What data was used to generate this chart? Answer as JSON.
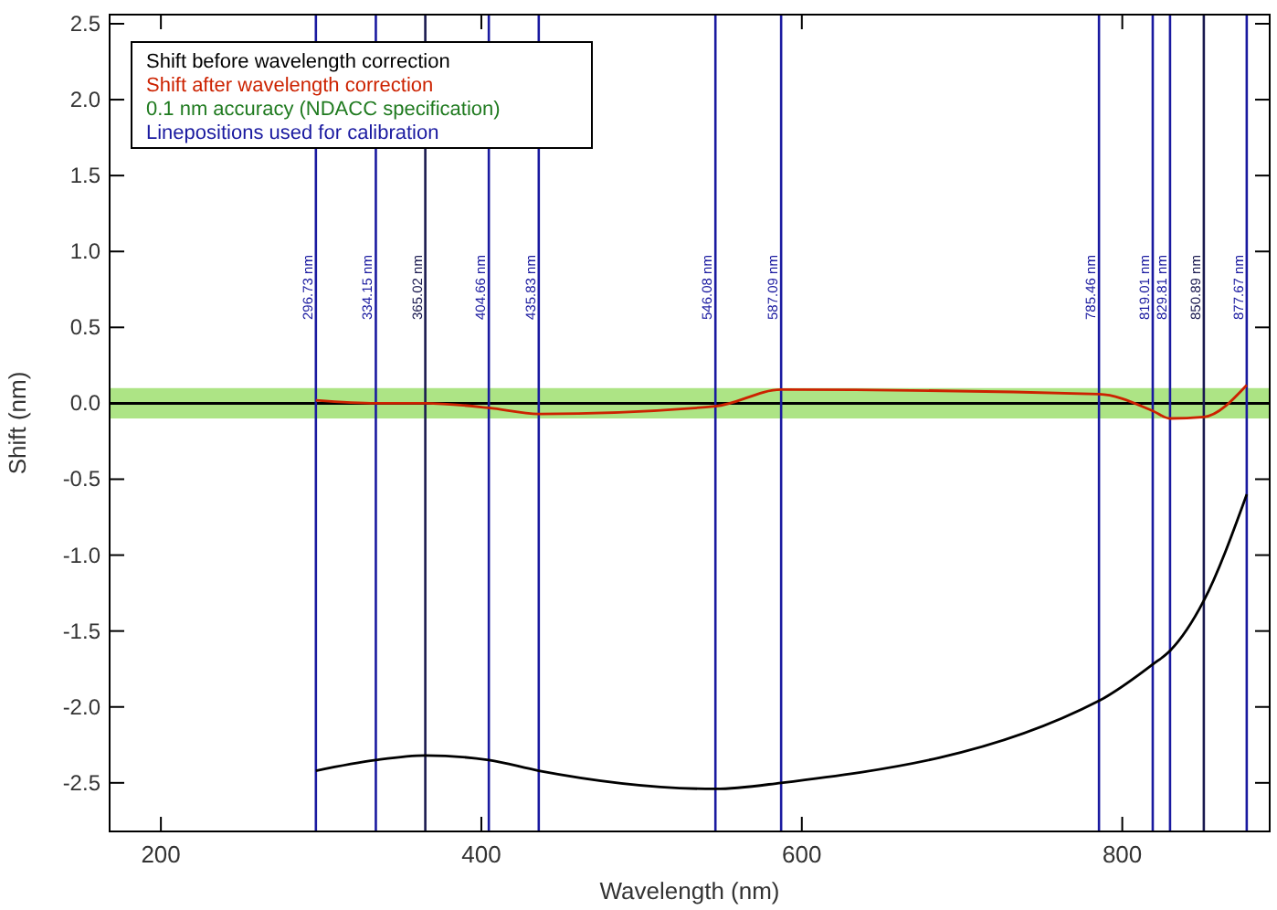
{
  "chart_data": {
    "type": "line",
    "xlabel": "Wavelength (nm)",
    "ylabel": "Shift (nm)",
    "x": [
      296.73,
      334.15,
      365.02,
      404.66,
      435.83,
      546.08,
      587.09,
      785.46,
      819.01,
      829.81,
      850.89,
      877.67
    ],
    "series": [
      {
        "name": "Shift before wavelength correction",
        "color": "#000000",
        "values": [
          -2.42,
          -2.35,
          -2.32,
          -2.35,
          -2.42,
          -2.54,
          -2.5,
          -1.96,
          -1.72,
          -1.63,
          -1.3,
          -0.6
        ]
      },
      {
        "name": "Shift after wavelength correction",
        "color": "#cc2200",
        "values": [
          0.02,
          0.0,
          0.0,
          -0.03,
          -0.07,
          -0.02,
          0.09,
          0.06,
          -0.05,
          -0.1,
          -0.09,
          0.12
        ]
      }
    ],
    "bands": [
      {
        "axis": "y",
        "from": -0.1,
        "to": 0.1,
        "color": "#99dd66"
      }
    ],
    "annotations": [
      "0.1 nm accuracy (NDACC specification)",
      "Linepositions used for calibration"
    ],
    "ref_lines": [
      {
        "axis": "y",
        "value": 0,
        "color": "#000000"
      },
      {
        "axis": "x",
        "value": 296.73,
        "label": "296.73 nm",
        "color": "#1a1aa0"
      },
      {
        "axis": "x",
        "value": 334.15,
        "label": "334.15 nm",
        "color": "#1a1aa0"
      },
      {
        "axis": "x",
        "value": 365.02,
        "label": "365.02 nm",
        "color": "#1a1a50"
      },
      {
        "axis": "x",
        "value": 404.66,
        "label": "404.66 nm",
        "color": "#1a1aa0"
      },
      {
        "axis": "x",
        "value": 435.83,
        "label": "435.83 nm",
        "color": "#1a1aa0"
      },
      {
        "axis": "x",
        "value": 546.08,
        "label": "546.08 nm",
        "color": "#1a1aa0"
      },
      {
        "axis": "x",
        "value": 587.09,
        "label": "587.09 nm",
        "color": "#1a1aa0"
      },
      {
        "axis": "x",
        "value": 785.46,
        "label": "785.46 nm",
        "color": "#1a1aa0"
      },
      {
        "axis": "x",
        "value": 819.01,
        "label": "819.01 nm",
        "color": "#1a1aa0"
      },
      {
        "axis": "x",
        "value": 829.81,
        "label": "829.81 nm",
        "color": "#1a1aa0"
      },
      {
        "axis": "x",
        "value": 850.89,
        "label": "850.89 nm",
        "color": "#1a1a50"
      },
      {
        "axis": "x",
        "value": 877.67,
        "label": "877.67 nm",
        "color": "#1a1aa0"
      }
    ],
    "xlim": [
      168,
      892
    ],
    "xticks": [
      200,
      400,
      600,
      800
    ],
    "ylim": [
      -2.82,
      2.56
    ],
    "yticks": [
      {
        "value": 2.5,
        "label": "2.5"
      },
      {
        "value": 2,
        "label": "2.0"
      },
      {
        "value": 1.5,
        "label": "1.5"
      },
      {
        "value": 1,
        "label": "1.0"
      },
      {
        "value": 0.5,
        "label": "0.5"
      },
      {
        "value": 0,
        "label": "0.0"
      },
      {
        "value": -0.5,
        "label": "-0.5"
      },
      {
        "value": -1,
        "label": "-1.0"
      },
      {
        "value": -1.5,
        "label": "-1.5"
      },
      {
        "value": -2,
        "label": "-2.0"
      },
      {
        "value": -2.5,
        "label": "-2.5"
      }
    ],
    "legend": "top left",
    "grid": false,
    "marker": "none",
    "line_style": "solid"
  }
}
